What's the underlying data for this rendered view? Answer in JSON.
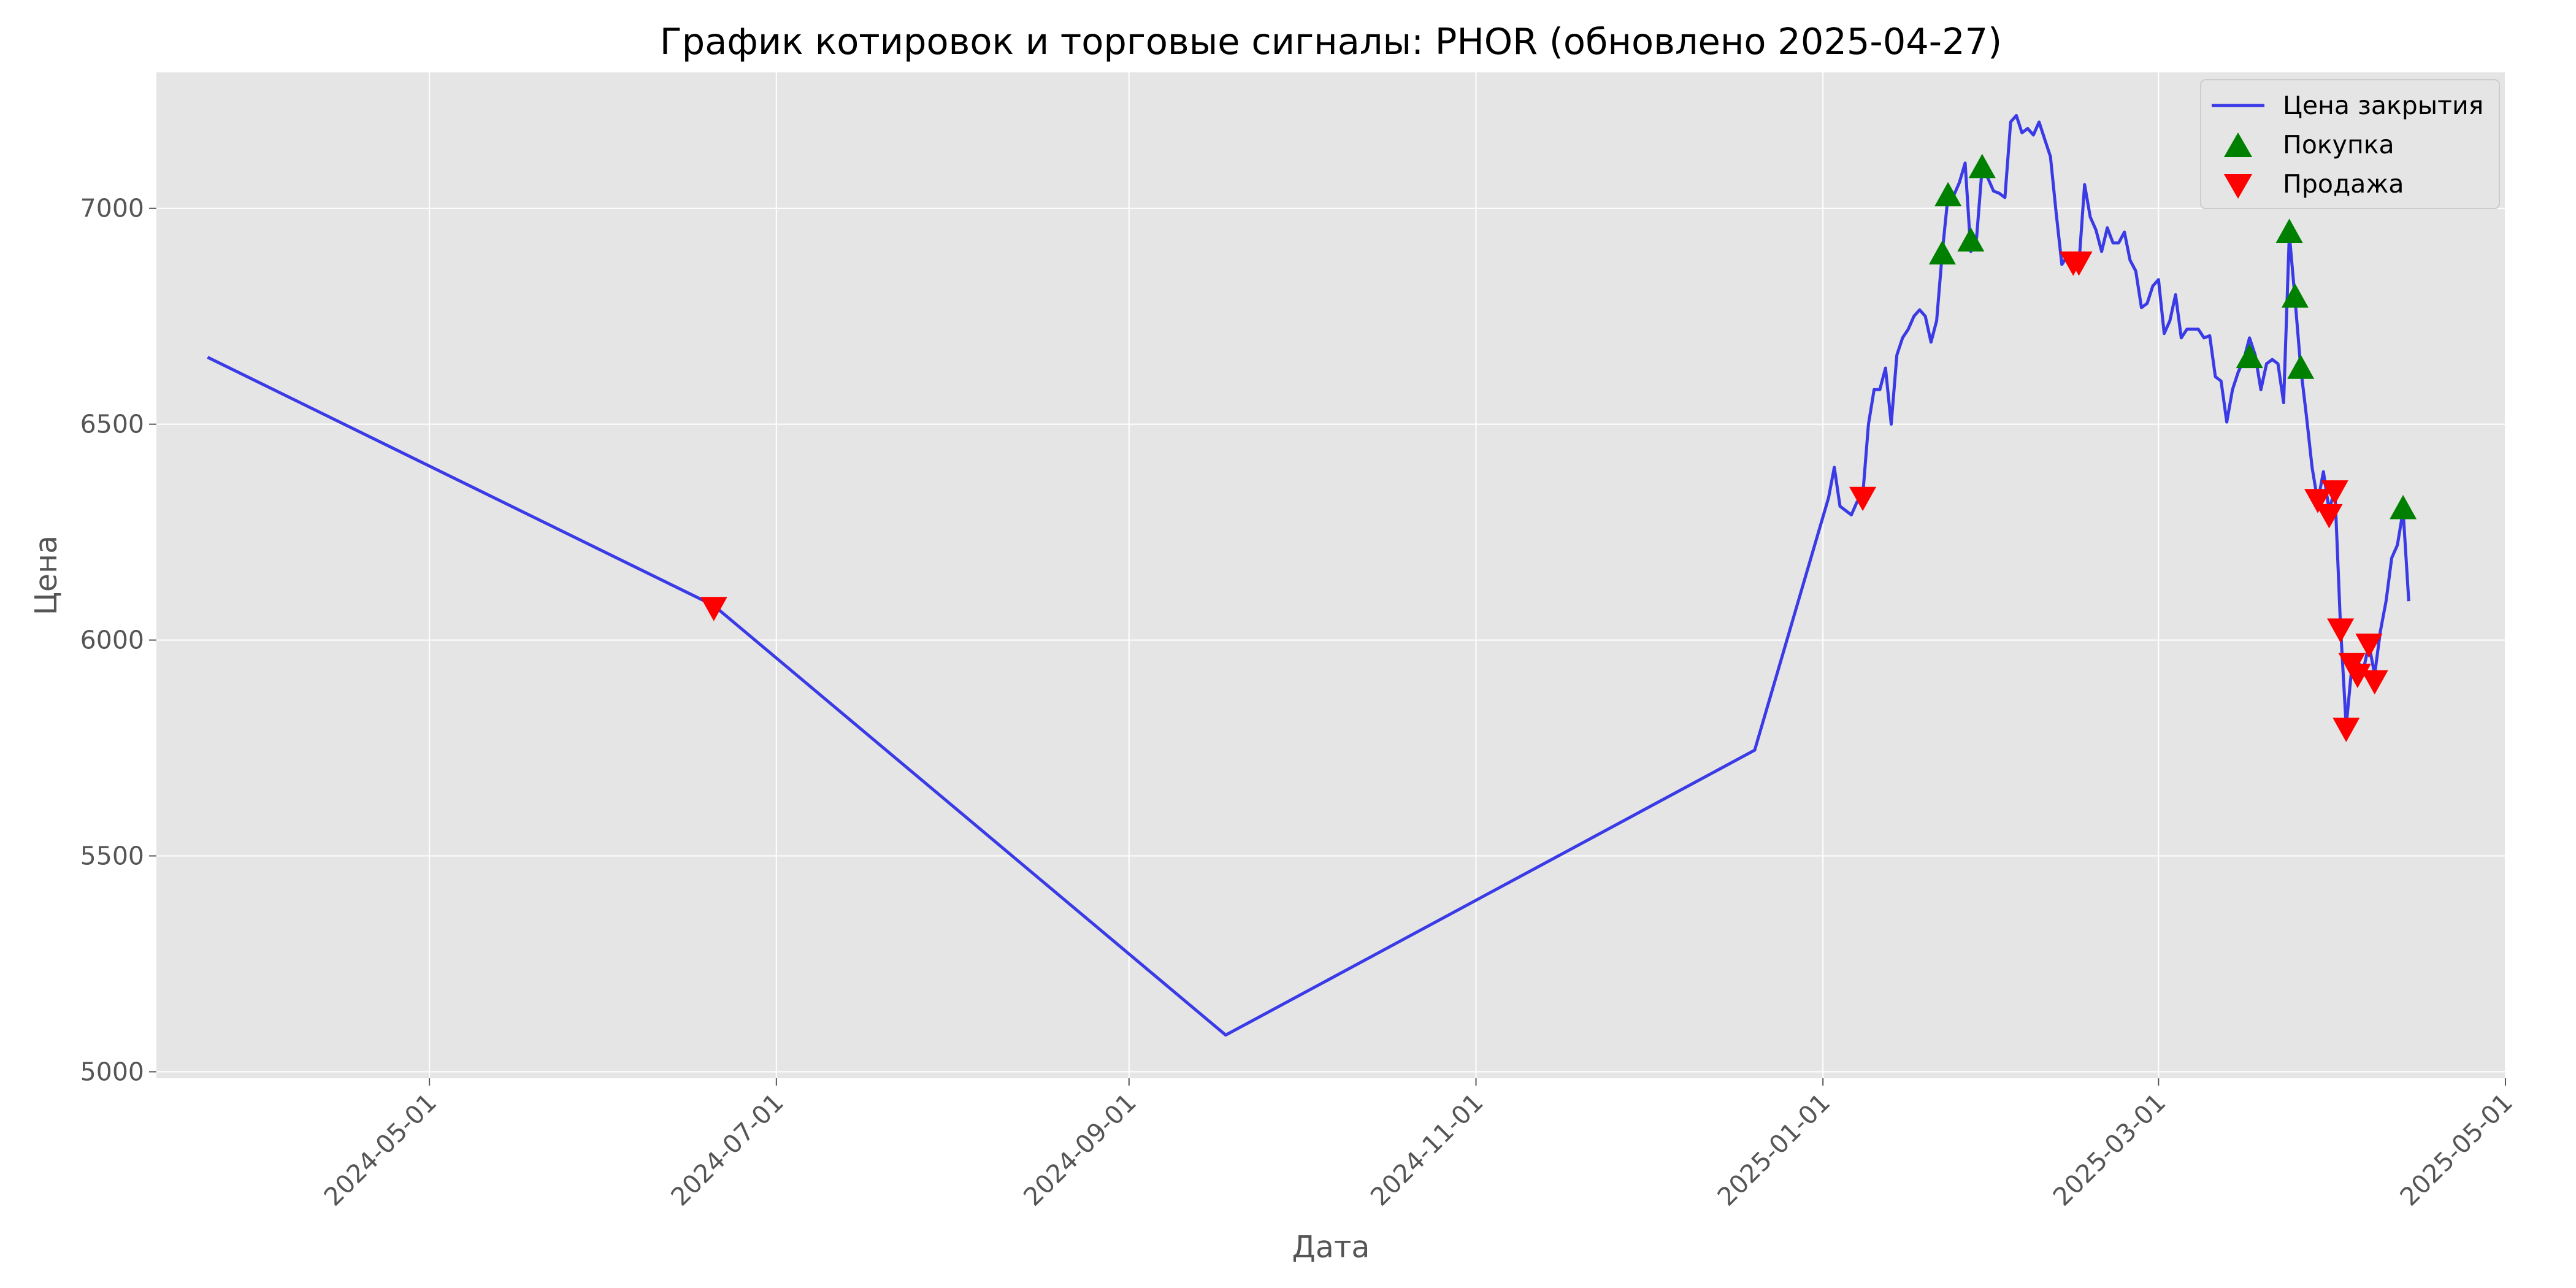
{
  "chart_data": {
    "type": "line",
    "title": "График котировок и торговые сигналы: PHOR (обновлено 2025-04-27)",
    "xlabel": "Дата",
    "ylabel": "Цена",
    "x_axis": {
      "type": "date",
      "range": [
        "2024-03-14",
        "2025-05-01"
      ],
      "ticks": [
        "2024-05-01",
        "2024-07-01",
        "2024-09-01",
        "2024-11-01",
        "2025-01-01",
        "2025-03-01",
        "2025-05-01"
      ]
    },
    "y_axis": {
      "range": [
        4985,
        7315
      ],
      "ticks": [
        5000,
        5500,
        6000,
        6500,
        7000
      ]
    },
    "grid": true,
    "legend_position": "top-right",
    "colors": {
      "background": "#e5e5e5",
      "grid": "#ffffff",
      "line": "#3a3ae6",
      "buy": "#008000",
      "sell": "#ff0000",
      "text": "#555555"
    },
    "series": [
      {
        "name": "Цена закрытия",
        "kind": "line",
        "color": "#3a3ae6",
        "points": [
          [
            "2024-03-23",
            6655
          ],
          [
            "2024-06-20",
            6080
          ],
          [
            "2024-09-18",
            5085
          ],
          [
            "2024-12-20",
            5745
          ],
          [
            "2025-01-02",
            6330
          ],
          [
            "2025-01-03",
            6400
          ],
          [
            "2025-01-04",
            6310
          ],
          [
            "2025-01-06",
            6290
          ],
          [
            "2025-01-07",
            6320
          ],
          [
            "2025-01-08",
            6335
          ],
          [
            "2025-01-09",
            6500
          ],
          [
            "2025-01-10",
            6580
          ],
          [
            "2025-01-11",
            6580
          ],
          [
            "2025-01-12",
            6630
          ],
          [
            "2025-01-13",
            6500
          ],
          [
            "2025-01-14",
            6660
          ],
          [
            "2025-01-15",
            6700
          ],
          [
            "2025-01-16",
            6720
          ],
          [
            "2025-01-17",
            6750
          ],
          [
            "2025-01-18",
            6765
          ],
          [
            "2025-01-19",
            6750
          ],
          [
            "2025-01-20",
            6690
          ],
          [
            "2025-01-21",
            6740
          ],
          [
            "2025-01-22",
            6900
          ],
          [
            "2025-01-23",
            7030
          ],
          [
            "2025-01-24",
            7030
          ],
          [
            "2025-01-25",
            7060
          ],
          [
            "2025-01-26",
            7105
          ],
          [
            "2025-01-27",
            6900
          ],
          [
            "2025-01-28",
            6930
          ],
          [
            "2025-01-29",
            7095
          ],
          [
            "2025-01-30",
            7070
          ],
          [
            "2025-01-31",
            7040
          ],
          [
            "2025-02-01",
            7035
          ],
          [
            "2025-02-02",
            7025
          ],
          [
            "2025-02-03",
            7200
          ],
          [
            "2025-02-04",
            7215
          ],
          [
            "2025-02-05",
            7175
          ],
          [
            "2025-02-06",
            7185
          ],
          [
            "2025-02-07",
            7170
          ],
          [
            "2025-02-08",
            7200
          ],
          [
            "2025-02-09",
            7160
          ],
          [
            "2025-02-10",
            7120
          ],
          [
            "2025-02-11",
            6990
          ],
          [
            "2025-02-12",
            6870
          ],
          [
            "2025-02-13",
            6890
          ],
          [
            "2025-02-14",
            6870
          ],
          [
            "2025-02-15",
            6870
          ],
          [
            "2025-02-16",
            7055
          ],
          [
            "2025-02-17",
            6980
          ],
          [
            "2025-02-18",
            6950
          ],
          [
            "2025-02-19",
            6900
          ],
          [
            "2025-02-20",
            6955
          ],
          [
            "2025-02-21",
            6920
          ],
          [
            "2025-02-22",
            6920
          ],
          [
            "2025-02-23",
            6945
          ],
          [
            "2025-02-24",
            6880
          ],
          [
            "2025-02-25",
            6855
          ],
          [
            "2025-02-26",
            6770
          ],
          [
            "2025-02-27",
            6780
          ],
          [
            "2025-02-28",
            6820
          ],
          [
            "2025-03-01",
            6835
          ],
          [
            "2025-03-02",
            6710
          ],
          [
            "2025-03-03",
            6740
          ],
          [
            "2025-03-04",
            6800
          ],
          [
            "2025-03-05",
            6700
          ],
          [
            "2025-03-06",
            6720
          ],
          [
            "2025-03-07",
            6720
          ],
          [
            "2025-03-08",
            6720
          ],
          [
            "2025-03-09",
            6700
          ],
          [
            "2025-03-10",
            6705
          ],
          [
            "2025-03-11",
            6610
          ],
          [
            "2025-03-12",
            6600
          ],
          [
            "2025-03-13",
            6505
          ],
          [
            "2025-03-14",
            6580
          ],
          [
            "2025-03-15",
            6620
          ],
          [
            "2025-03-16",
            6650
          ],
          [
            "2025-03-17",
            6700
          ],
          [
            "2025-03-18",
            6660
          ],
          [
            "2025-03-19",
            6580
          ],
          [
            "2025-03-20",
            6640
          ],
          [
            "2025-03-21",
            6650
          ],
          [
            "2025-03-22",
            6640
          ],
          [
            "2025-03-23",
            6550
          ],
          [
            "2025-03-24",
            6940
          ],
          [
            "2025-03-25",
            6790
          ],
          [
            "2025-03-26",
            6630
          ],
          [
            "2025-03-27",
            6520
          ],
          [
            "2025-03-28",
            6400
          ],
          [
            "2025-03-29",
            6320
          ],
          [
            "2025-03-30",
            6390
          ],
          [
            "2025-03-31",
            6300
          ],
          [
            "2025-04-01",
            6350
          ],
          [
            "2025-04-02",
            6030
          ],
          [
            "2025-04-03",
            5800
          ],
          [
            "2025-04-04",
            5940
          ],
          [
            "2025-04-05",
            5950
          ],
          [
            "2025-04-06",
            5930
          ],
          [
            "2025-04-07",
            5990
          ],
          [
            "2025-04-08",
            5920
          ],
          [
            "2025-04-09",
            6020
          ],
          [
            "2025-04-10",
            6090
          ],
          [
            "2025-04-11",
            6190
          ],
          [
            "2025-04-12",
            6220
          ],
          [
            "2025-04-13",
            6300
          ],
          [
            "2025-04-14",
            6090
          ]
        ]
      },
      {
        "name": "Покупка",
        "kind": "marker",
        "marker": "triangle-up",
        "color": "#008000",
        "points": [
          [
            "2025-01-22",
            6895
          ],
          [
            "2025-01-23",
            7030
          ],
          [
            "2025-01-27",
            6925
          ],
          [
            "2025-01-29",
            7095
          ],
          [
            "2025-03-17",
            6655
          ],
          [
            "2025-03-24",
            6945
          ],
          [
            "2025-03-25",
            6795
          ],
          [
            "2025-03-26",
            6630
          ],
          [
            "2025-04-13",
            6305
          ]
        ]
      },
      {
        "name": "Продажа",
        "kind": "marker",
        "marker": "triangle-down",
        "color": "#ff0000",
        "points": [
          [
            "2024-06-20",
            6075
          ],
          [
            "2025-01-08",
            6330
          ],
          [
            "2025-02-14",
            6875
          ],
          [
            "2025-02-15",
            6875
          ],
          [
            "2025-03-29",
            6325
          ],
          [
            "2025-03-31",
            6290
          ],
          [
            "2025-04-01",
            6345
          ],
          [
            "2025-04-02",
            6025
          ],
          [
            "2025-04-03",
            5795
          ],
          [
            "2025-04-04",
            5945
          ],
          [
            "2025-04-05",
            5920
          ],
          [
            "2025-04-07",
            5990
          ],
          [
            "2025-04-08",
            5905
          ]
        ]
      }
    ]
  }
}
